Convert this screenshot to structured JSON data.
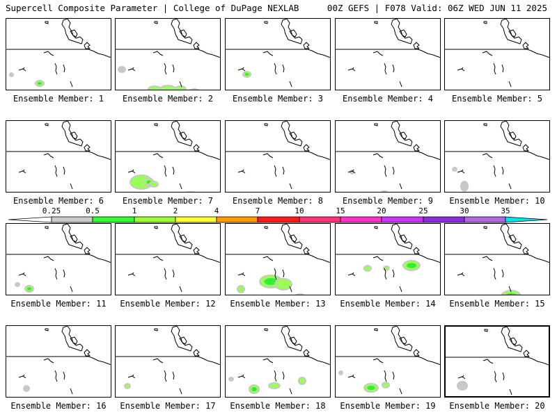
{
  "header": {
    "title_left": "Supercell Composite Parameter | College of DuPage NEXLAB",
    "title_right": "00Z GEFS | F078 Valid: 06Z WED JUN 11 2025"
  },
  "label_prefix": "Ensemble Member:",
  "members": [
    {
      "label": "Ensemble Member: 1",
      "blobs": [
        {
          "x": 43,
          "y": 90,
          "w": 10,
          "h": 6,
          "l": 2
        },
        {
          "x": 6,
          "y": 79,
          "w": 3,
          "h": 3,
          "l": 0
        }
      ]
    },
    {
      "label": "Ensemble Member: 2",
      "blobs": [
        {
          "x": 5,
          "y": 70,
          "w": 8,
          "h": 6,
          "l": 0
        },
        {
          "x": 48,
          "y": 98,
          "w": 16,
          "h": 6,
          "l": 1
        },
        {
          "x": 66,
          "y": 97,
          "w": 18,
          "h": 6,
          "l": 1
        },
        {
          "x": 86,
          "y": 98,
          "w": 14,
          "h": 6,
          "l": 1
        },
        {
          "x": 106,
          "y": 102,
          "w": 14,
          "h": 6,
          "l": 1
        }
      ]
    },
    {
      "label": "Ensemble Member: 3",
      "blobs": [
        {
          "x": 26,
          "y": 77,
          "w": 9,
          "h": 6,
          "l": 2
        }
      ]
    },
    {
      "label": "Ensemble Member: 4",
      "blobs": []
    },
    {
      "label": "Ensemble Member: 5",
      "blobs": []
    },
    {
      "label": "Ensemble Member: 6",
      "blobs": []
    },
    {
      "label": "Ensemble Member: 7",
      "blobs": [
        {
          "x": 22,
          "y": 79,
          "w": 30,
          "h": 18,
          "l": 1
        },
        {
          "x": 42,
          "y": 84,
          "w": 12,
          "h": 8,
          "l": 2
        },
        {
          "x": 50,
          "y": 88,
          "w": 10,
          "h": 6,
          "l": 1
        },
        {
          "x": 97,
          "y": 103,
          "w": 20,
          "h": 4,
          "l": 0
        }
      ]
    },
    {
      "label": "Ensemble Member: 8",
      "blobs": []
    },
    {
      "label": "Ensemble Member: 9",
      "blobs": [
        {
          "x": 66,
          "y": 102,
          "w": 8,
          "h": 4,
          "l": 1
        },
        {
          "x": 22,
          "y": 72,
          "w": 3,
          "h": 3,
          "l": 0
        }
      ]
    },
    {
      "label": "Ensemble Member: 10",
      "blobs": [
        {
          "x": 24,
          "y": 88,
          "w": 8,
          "h": 12,
          "l": 0
        },
        {
          "x": 12,
          "y": 68,
          "w": 4,
          "h": 3,
          "l": 0
        }
      ]
    },
    {
      "label": "Ensemble Member: 11",
      "blobs": [
        {
          "x": 28,
          "y": 90,
          "w": 10,
          "h": 7,
          "l": 2
        },
        {
          "x": 14,
          "y": 86,
          "w": 4,
          "h": 3,
          "l": 0
        }
      ]
    },
    {
      "label": "Ensemble Member: 12",
      "blobs": []
    },
    {
      "label": "Ensemble Member: 13",
      "blobs": [
        {
          "x": 50,
          "y": 75,
          "w": 30,
          "h": 16,
          "l": 2
        },
        {
          "x": 72,
          "y": 80,
          "w": 22,
          "h": 14,
          "l": 1
        },
        {
          "x": 18,
          "y": 90,
          "w": 8,
          "h": 8,
          "l": 1
        },
        {
          "x": 100,
          "y": 102,
          "w": 14,
          "h": 6,
          "l": 0
        }
      ]
    },
    {
      "label": "Ensemble Member: 14",
      "blobs": [
        {
          "x": 98,
          "y": 54,
          "w": 22,
          "h": 12,
          "l": 2
        },
        {
          "x": 42,
          "y": 61,
          "w": 8,
          "h": 6,
          "l": 1
        },
        {
          "x": 70,
          "y": 62,
          "w": 6,
          "h": 4,
          "l": 1
        }
      ]
    },
    {
      "label": "Ensemble Member: 15",
      "blobs": [
        {
          "x": 82,
          "y": 97,
          "w": 26,
          "h": 14,
          "l": 2
        }
      ]
    },
    {
      "label": "Ensemble Member: 16",
      "blobs": [
        {
          "x": 26,
          "y": 87,
          "w": 6,
          "h": 6,
          "l": 0
        }
      ]
    },
    {
      "label": "Ensemble Member: 17",
      "blobs": [
        {
          "x": 14,
          "y": 84,
          "w": 6,
          "h": 5,
          "l": 1
        }
      ]
    },
    {
      "label": "Ensemble Member: 18",
      "blobs": [
        {
          "x": 35,
          "y": 86,
          "w": 12,
          "h": 10,
          "l": 2
        },
        {
          "x": 63,
          "y": 83,
          "w": 14,
          "h": 6,
          "l": 1
        },
        {
          "x": 106,
          "y": 75,
          "w": 8,
          "h": 8,
          "l": 1
        },
        {
          "x": 6,
          "y": 75,
          "w": 4,
          "h": 3,
          "l": 0
        }
      ]
    },
    {
      "label": "Ensemble Member: 19",
      "blobs": [
        {
          "x": 42,
          "y": 84,
          "w": 18,
          "h": 10,
          "l": 2
        },
        {
          "x": 68,
          "y": 82,
          "w": 8,
          "h": 6,
          "l": 1
        },
        {
          "x": 6,
          "y": 66,
          "w": 3,
          "h": 3,
          "l": 0
        }
      ]
    },
    {
      "label": "Ensemble Member: 20",
      "blobs": [
        {
          "x": 18,
          "y": 80,
          "w": 12,
          "h": 10,
          "l": 0
        }
      ],
      "selected": true
    }
  ],
  "colorbar": {
    "ticks": [
      "0.25",
      "0.5",
      "1",
      "2",
      "4",
      "7",
      "10",
      "15",
      "20",
      "25",
      "30",
      "35"
    ],
    "colors": [
      "#ffffff",
      "#cccccc",
      "#33ff33",
      "#99ff33",
      "#ffff33",
      "#ff9900",
      "#ff1a1a",
      "#ff3377",
      "#ff33cc",
      "#cc33ff",
      "#8a2be2",
      "#b266e0",
      "#00e5e5"
    ]
  },
  "shading_colors": [
    "#c8c8c8",
    "#99ff55",
    "#33ee33"
  ]
}
